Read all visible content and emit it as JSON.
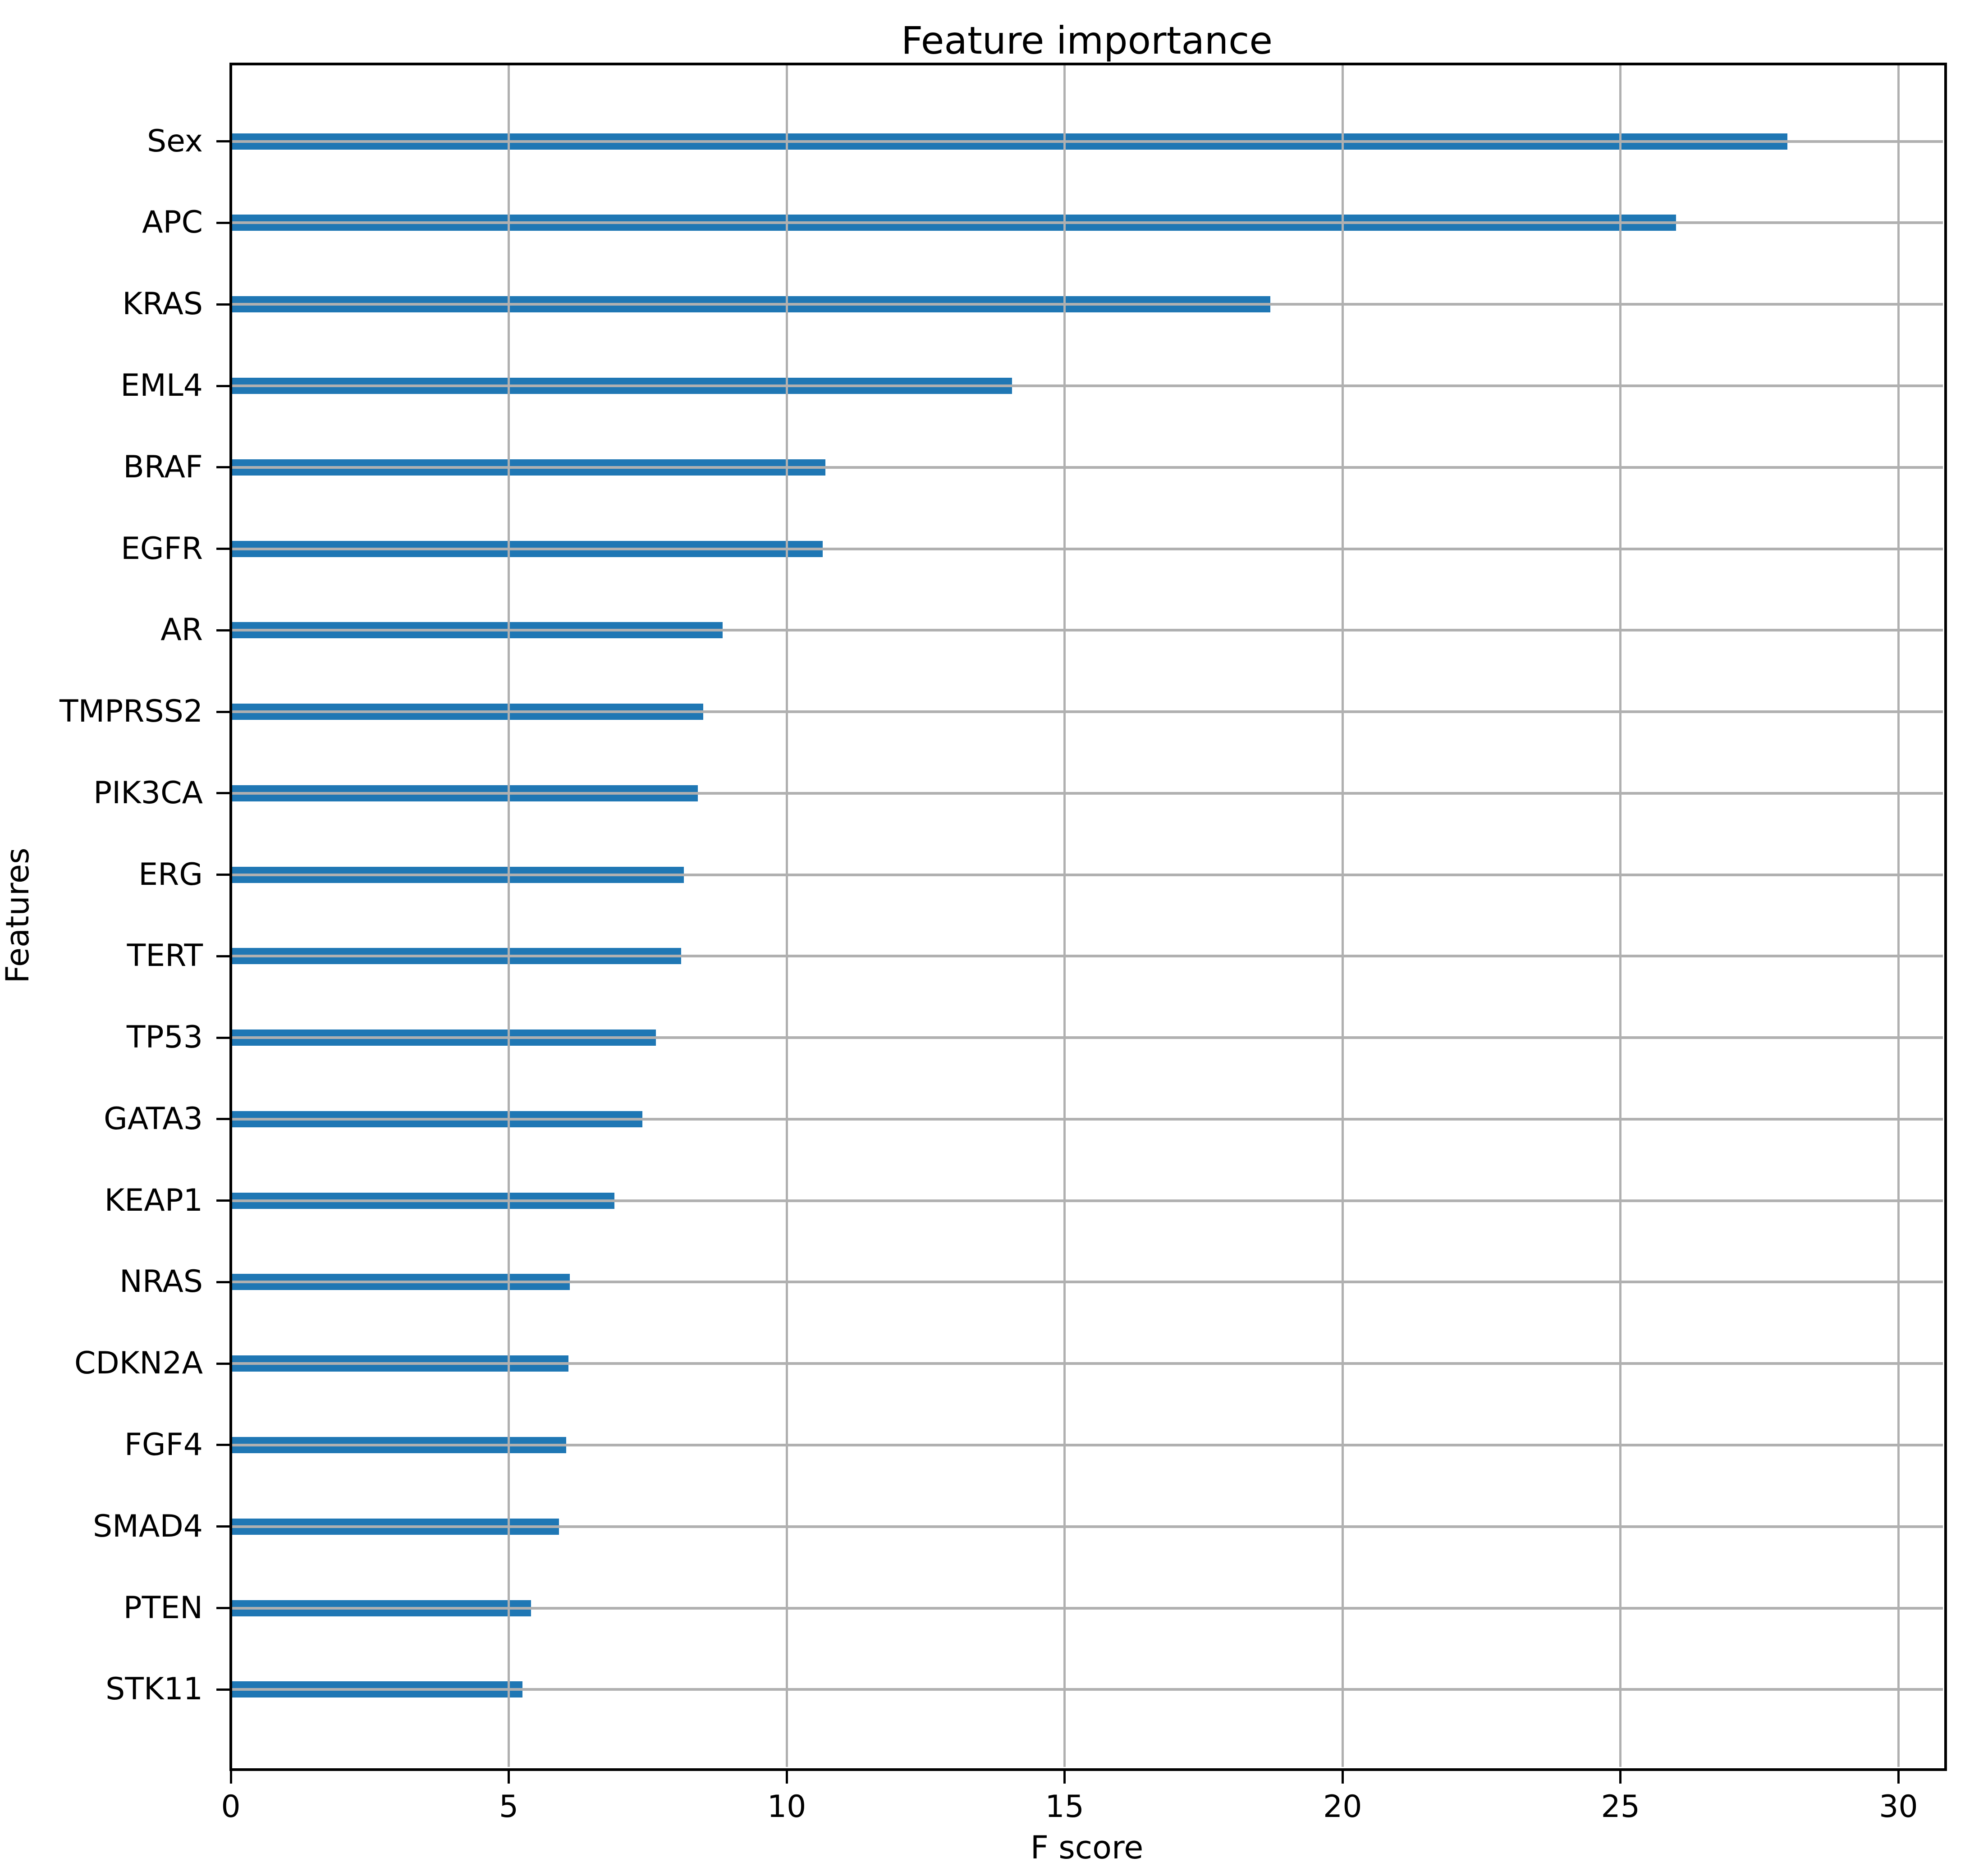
{
  "chart_data": {
    "type": "bar",
    "orientation": "horizontal",
    "title": "Feature importance",
    "xlabel": "F score",
    "ylabel": "Features",
    "categories": [
      "Sex",
      "APC",
      "KRAS",
      "EML4",
      "BRAF",
      "EGFR",
      "AR",
      "TMPRSS2",
      "PIK3CA",
      "ERG",
      "TERT",
      "TP53",
      "GATA3",
      "KEAP1",
      "NRAS",
      "CDKN2A",
      "FGF4",
      "SMAD4",
      "PTEN",
      "STK11"
    ],
    "values": [
      28,
      26,
      18.7,
      14.05,
      10.7,
      10.65,
      8.85,
      8.5,
      8.4,
      8.15,
      8.1,
      7.65,
      7.4,
      6.9,
      6.1,
      6.07,
      6.03,
      5.9,
      5.4,
      5.25
    ],
    "xticks": [
      0,
      5,
      10,
      15,
      20,
      25,
      30
    ],
    "xlim": [
      0,
      30.8
    ],
    "grid": true,
    "legend": null,
    "bar_color": "#1f77b4",
    "grid_color": "#b0b0b0",
    "spine_color": "#000000",
    "background_color": "#ffffff"
  }
}
